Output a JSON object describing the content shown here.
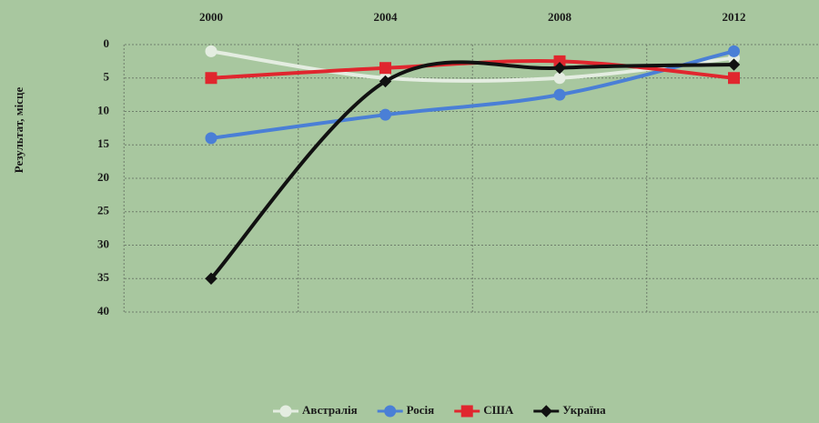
{
  "chart_data": {
    "type": "line",
    "y_label": "Результат, місце",
    "categories": [
      "2000",
      "2004",
      "2008",
      "2012"
    ],
    "series": [
      {
        "name": "Австралія",
        "color": "#e4ede1",
        "marker": "circle",
        "values": [
          1,
          5,
          5,
          2
        ]
      },
      {
        "name": "Росія",
        "color": "#4a7fd6",
        "marker": "circle",
        "values": [
          14,
          10.5,
          7.5,
          1
        ]
      },
      {
        "name": "США",
        "color": "#e0262e",
        "marker": "square",
        "values": [
          5,
          3.5,
          2.5,
          5
        ]
      },
      {
        "name": "Україна",
        "color": "#111111",
        "marker": "diamond",
        "values": [
          35,
          5.5,
          3.5,
          3
        ]
      }
    ],
    "ylim": [
      0,
      40
    ],
    "yticks": [
      0,
      5,
      10,
      15,
      20,
      25,
      30,
      35,
      40
    ],
    "y_inverted": true,
    "grid": true,
    "legend": "bottom"
  }
}
